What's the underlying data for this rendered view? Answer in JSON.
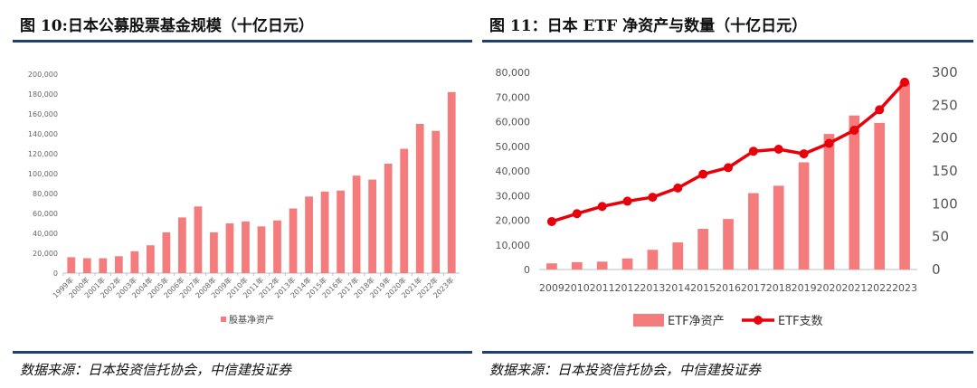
{
  "figure1": {
    "title": "图 10:日本公募股票基金规模（十亿日元）",
    "source": "数据来源：日本投资信托协会，中信建投证券"
  },
  "figure2": {
    "title": "图 11：日本 ETF 净资产与数量（十亿日元）",
    "source": "数据来源：日本投资信托协会，中信建投证券"
  },
  "colors": {
    "bar": "#f47c7c",
    "line": "#e8000b",
    "rule": "#1f3f6e"
  },
  "chart_data": [
    {
      "type": "bar",
      "title": "日本公募股票基金规模（十亿日元）",
      "categories": [
        "1999年",
        "2000年",
        "2001年",
        "2002年",
        "2003年",
        "2004年",
        "2005年",
        "2006年",
        "2007年",
        "2008年",
        "2009年",
        "2010年",
        "2011年",
        "2012年",
        "2013年",
        "2014年",
        "2015年",
        "2016年",
        "2017年",
        "2018年",
        "2019年",
        "2020年",
        "2021年",
        "2022年",
        "2023年"
      ],
      "series": [
        {
          "name": "股基净资产",
          "values": [
            16000,
            15000,
            15000,
            17000,
            22000,
            28000,
            41000,
            56000,
            67000,
            41000,
            50000,
            52000,
            47000,
            53000,
            65000,
            77000,
            82000,
            83000,
            98000,
            94000,
            110000,
            125000,
            150000,
            143000,
            182000
          ]
        }
      ],
      "ylim": [
        0,
        200000
      ],
      "yticks": [
        "0",
        "20,000",
        "40,000",
        "60,000",
        "80,000",
        "100,000",
        "120,000",
        "140,000",
        "160,000",
        "180,000",
        "200,000"
      ],
      "legend": "bottom-center"
    },
    {
      "type": "bar+line",
      "title": "日本 ETF 净资产与数量（十亿日元）",
      "categories": [
        "2009",
        "2010",
        "2011",
        "2012",
        "2013",
        "2014",
        "2015",
        "2016",
        "2017",
        "2018",
        "2019",
        "2020",
        "2021",
        "2022",
        "2023"
      ],
      "series": [
        {
          "name": "ETF净资产",
          "axis": "left",
          "values": [
            2500,
            3000,
            3200,
            4500,
            8000,
            11000,
            16500,
            20500,
            31000,
            34000,
            43500,
            55000,
            62500,
            59500,
            76000
          ]
        },
        {
          "name": "ETF支数",
          "axis": "right",
          "values": [
            73,
            85,
            96,
            104,
            110,
            124,
            145,
            155,
            180,
            183,
            176,
            192,
            212,
            243,
            285
          ]
        }
      ],
      "ylim_left": [
        0,
        80000
      ],
      "yticks_left": [
        "0",
        "10,000",
        "20,000",
        "30,000",
        "40,000",
        "50,000",
        "60,000",
        "70,000",
        "80,000"
      ],
      "ylim_right": [
        0,
        300
      ],
      "yticks_right": [
        "0",
        "50",
        "100",
        "150",
        "200",
        "250",
        "300"
      ],
      "legend": "bottom-center"
    }
  ]
}
